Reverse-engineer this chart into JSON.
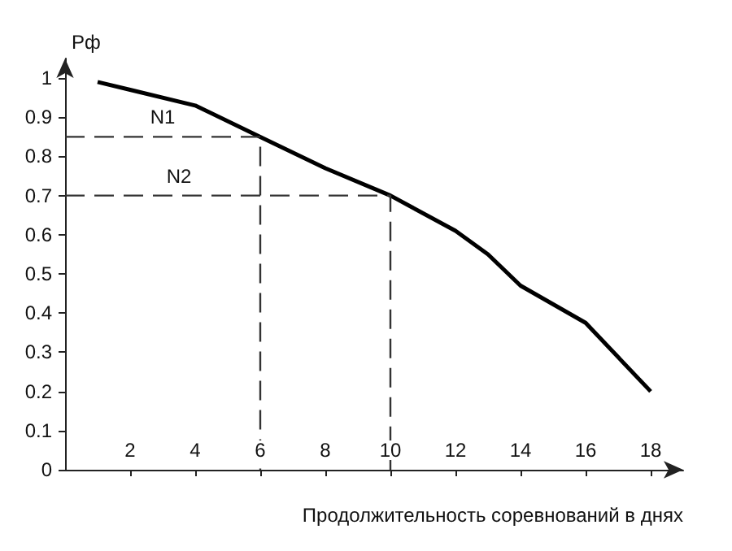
{
  "chart_data": {
    "type": "line",
    "xlabel": "Продолжительность соревнований в днях",
    "ylabel": "Рф",
    "xlim": [
      0,
      19
    ],
    "xticks": [
      2,
      4,
      6,
      8,
      10,
      12,
      14,
      16,
      18
    ],
    "ylim": [
      0,
      1.05
    ],
    "yticks": [
      0,
      0.1,
      0.2,
      0.3,
      0.4,
      0.5,
      0.6,
      0.7,
      0.8,
      0.9,
      1
    ],
    "grid": false,
    "marker": "none",
    "series": [
      {
        "color": "#000000",
        "x": [
          1,
          2,
          4,
          6,
          8,
          10,
          12,
          13,
          14,
          16,
          18
        ],
        "values": [
          0.99,
          0.97,
          0.93,
          0.85,
          0.77,
          0.7,
          0.61,
          0.55,
          0.47,
          0.375,
          0.2
        ],
        "line_style": "solid"
      },
      {
        "color": "#333333",
        "x": [
          0,
          6,
          6
        ],
        "values": [
          0.85,
          0.85,
          0
        ],
        "line_style": "dashed"
      },
      {
        "color": "#333333",
        "x": [
          0,
          10,
          10
        ],
        "values": [
          0.7,
          0.7,
          0
        ],
        "line_style": "dashed"
      }
    ],
    "annotations": [
      {
        "text": "N1",
        "x": 3,
        "y": 0.85
      },
      {
        "text": "N2",
        "x": 3.5,
        "y": 0.7
      }
    ]
  }
}
